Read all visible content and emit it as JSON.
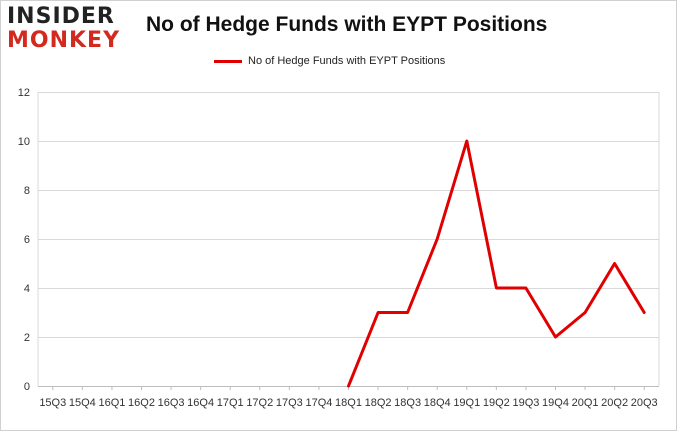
{
  "logo": {
    "line1": "INSIDER",
    "line2": "MONKEY"
  },
  "colors": {
    "series": "#e00000",
    "grid": "#d9d9d9",
    "logo_accent": "#d32a1f"
  },
  "chart_data": {
    "type": "line",
    "title": "No of Hedge Funds with EYPT Positions",
    "xlabel": "",
    "ylabel": "",
    "ylim": [
      0,
      12
    ],
    "yticks": [
      0,
      2,
      4,
      6,
      8,
      10,
      12
    ],
    "grid": "horizontal",
    "legend": "top-center",
    "categories": [
      "15Q3",
      "15Q4",
      "16Q1",
      "16Q2",
      "16Q3",
      "16Q4",
      "17Q1",
      "17Q2",
      "17Q3",
      "17Q4",
      "18Q1",
      "18Q2",
      "18Q3",
      "18Q4",
      "19Q1",
      "19Q2",
      "19Q3",
      "19Q4",
      "20Q1",
      "20Q2",
      "20Q3"
    ],
    "series": [
      {
        "name": "No of Hedge Funds with EYPT Positions",
        "values": [
          null,
          null,
          null,
          null,
          null,
          null,
          null,
          null,
          null,
          null,
          0,
          3,
          3,
          6,
          10,
          4,
          4,
          2,
          3,
          5,
          3
        ]
      }
    ]
  }
}
